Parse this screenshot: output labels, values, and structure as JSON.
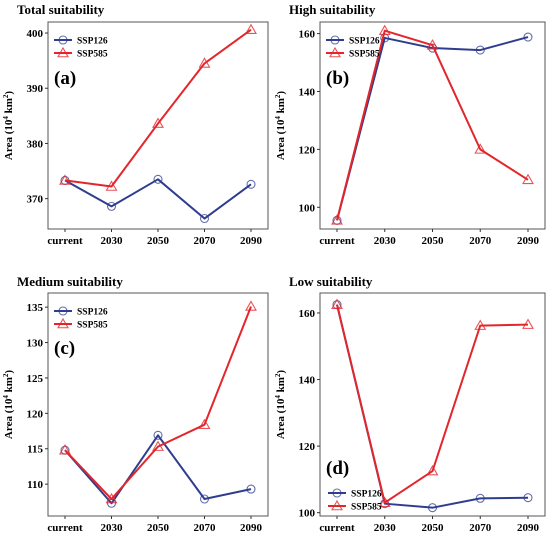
{
  "colors": {
    "ssp126": "#2f3d8f",
    "ssp585": "#e3262b"
  },
  "chart_data": [
    {
      "type": "line",
      "panel": "(a)",
      "title": "Total suitability",
      "ylabel_main": "Area (10",
      "ylabel_sup": "4",
      "ylabel_tail": " km",
      "ylabel_sup2": "2",
      "ylabel_end": ")",
      "categories": [
        "current",
        "2030",
        "2050",
        "2070",
        "2090"
      ],
      "ylim": [
        364.5,
        402
      ],
      "yticks": [
        370,
        380,
        390,
        400
      ],
      "legend_position": "top-left",
      "series": [
        {
          "name": "SSP126",
          "values": [
            373.3,
            368.6,
            373.5,
            366.4,
            372.6
          ]
        },
        {
          "name": "SSP585",
          "values": [
            373.3,
            372.2,
            383.6,
            394.5,
            400.6
          ]
        }
      ]
    },
    {
      "type": "line",
      "panel": "(b)",
      "title": "High suitability",
      "ylabel_main": "Area (10",
      "ylabel_sup": "4",
      "ylabel_tail": " km",
      "ylabel_sup2": "2",
      "ylabel_end": ")",
      "categories": [
        "current",
        "2030",
        "2050",
        "2070",
        "2090"
      ],
      "ylim": [
        92.5,
        164
      ],
      "yticks": [
        100,
        120,
        140,
        160
      ],
      "legend_position": "top-left",
      "series": [
        {
          "name": "SSP126",
          "values": [
            95.5,
            158.5,
            155.0,
            154.3,
            158.8
          ]
        },
        {
          "name": "SSP585",
          "values": [
            95.5,
            161.0,
            156.0,
            120.0,
            109.5
          ]
        }
      ]
    },
    {
      "type": "line",
      "panel": "(c)",
      "title": "Medium suitability",
      "ylabel_main": "Area (10",
      "ylabel_sup": "4",
      "ylabel_tail": " km",
      "ylabel_sup2": "2",
      "ylabel_end": ")",
      "categories": [
        "current",
        "2030",
        "2050",
        "2070",
        "2090"
      ],
      "ylim": [
        105.5,
        137
      ],
      "yticks": [
        110,
        115,
        120,
        125,
        130,
        135
      ],
      "legend_position": "top-left",
      "series": [
        {
          "name": "SSP126",
          "values": [
            114.8,
            107.3,
            116.9,
            107.9,
            109.3
          ]
        },
        {
          "name": "SSP585",
          "values": [
            114.8,
            107.9,
            115.3,
            118.4,
            135.1
          ]
        }
      ]
    },
    {
      "type": "line",
      "panel": "(d)",
      "title": "Low suitability",
      "ylabel_main": "Area (10",
      "ylabel_sup": "4",
      "ylabel_tail": " km",
      "ylabel_sup2": "2",
      "ylabel_end": ")",
      "categories": [
        "current",
        "2030",
        "2050",
        "2070",
        "2090"
      ],
      "ylim": [
        99,
        166
      ],
      "yticks": [
        100,
        120,
        140,
        160
      ],
      "legend_position": "bottom-right",
      "series": [
        {
          "name": "SSP126",
          "values": [
            162.5,
            102.7,
            101.5,
            104.3,
            104.5
          ]
        },
        {
          "name": "SSP585",
          "values": [
            162.5,
            103.0,
            112.5,
            156.2,
            156.5
          ]
        }
      ]
    }
  ]
}
